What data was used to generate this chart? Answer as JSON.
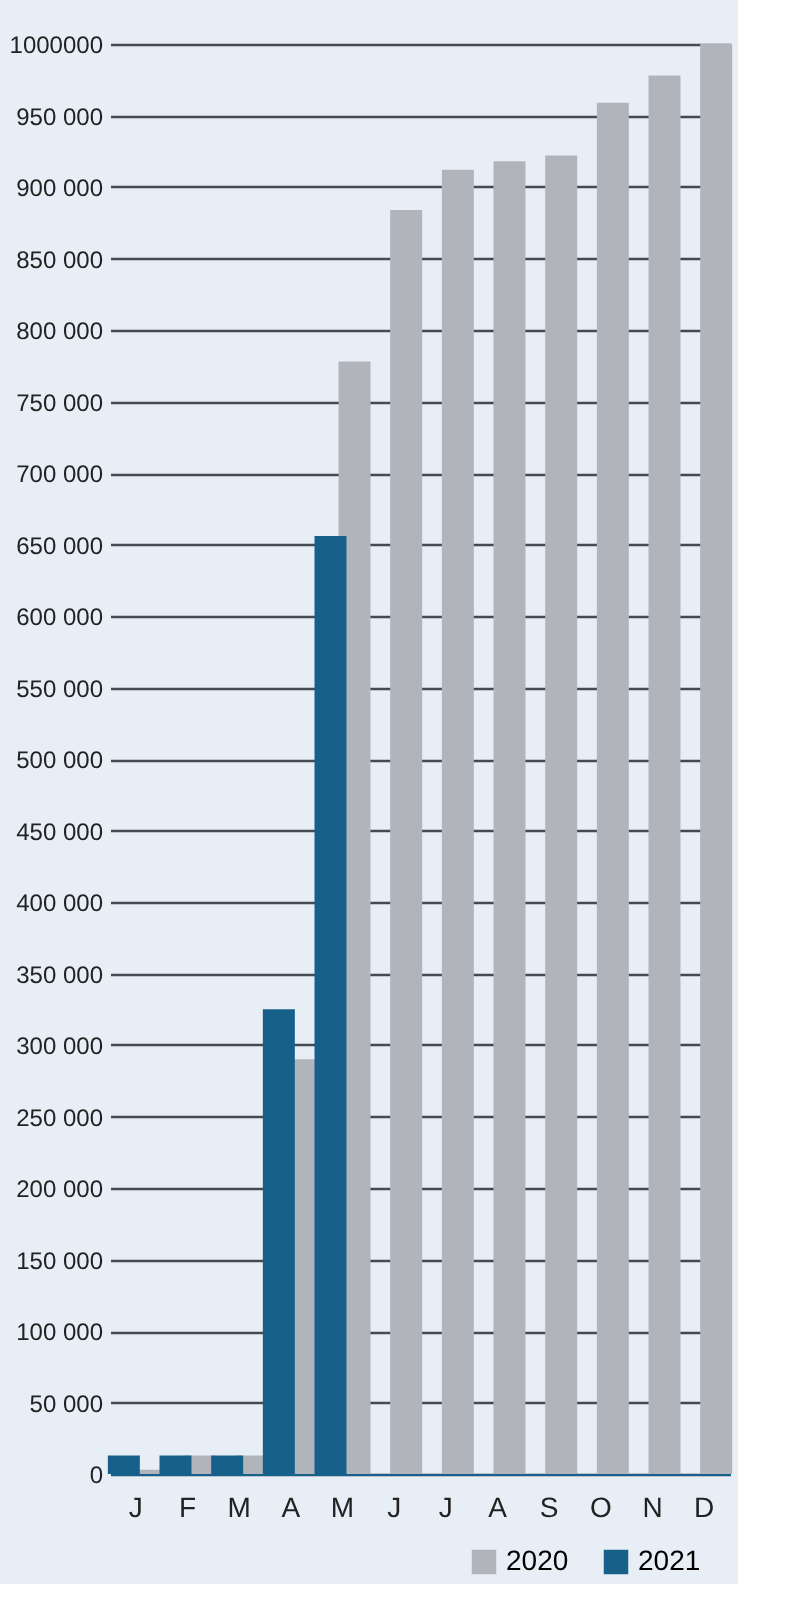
{
  "chart_data": {
    "type": "bar",
    "categories": [
      "J",
      "F",
      "M",
      "A",
      "M",
      "J",
      "J",
      "A",
      "S",
      "O",
      "N",
      "D"
    ],
    "series": [
      {
        "name": "2020",
        "color": "#b1b5bb",
        "values": [
          3000,
          13000,
          13000,
          290000,
          778000,
          884000,
          912000,
          918000,
          922000,
          959000,
          978000,
          1000000
        ]
      },
      {
        "name": "2021",
        "color": "#17608a",
        "values": [
          13000,
          13000,
          13000,
          325000,
          656000,
          null,
          null,
          null,
          null,
          null,
          null,
          null
        ]
      }
    ],
    "ylim": [
      0,
      1000000
    ],
    "yticks": [
      {
        "value": 0,
        "label": "0"
      },
      {
        "value": 50000,
        "label": "50 000"
      },
      {
        "value": 100000,
        "label": "100 000"
      },
      {
        "value": 150000,
        "label": "150 000"
      },
      {
        "value": 200000,
        "label": "200 000"
      },
      {
        "value": 250000,
        "label": "250 000"
      },
      {
        "value": 300000,
        "label": "300 000"
      },
      {
        "value": 350000,
        "label": "350 000"
      },
      {
        "value": 400000,
        "label": "400 000"
      },
      {
        "value": 450000,
        "label": "450 000"
      },
      {
        "value": 500000,
        "label": "500 000"
      },
      {
        "value": 550000,
        "label": "550 000"
      },
      {
        "value": 600000,
        "label": "600 000"
      },
      {
        "value": 650000,
        "label": "650 000"
      },
      {
        "value": 700000,
        "label": "700 000"
      },
      {
        "value": 750000,
        "label": "750 000"
      },
      {
        "value": 800000,
        "label": "800 000"
      },
      {
        "value": 850000,
        "label": "850 000"
      },
      {
        "value": 900000,
        "label": "900 000"
      },
      {
        "value": 950000,
        "label": "950 000"
      },
      {
        "value": 1000000,
        "label": "1000000"
      }
    ],
    "grid": "y",
    "legend": "bottom right"
  }
}
